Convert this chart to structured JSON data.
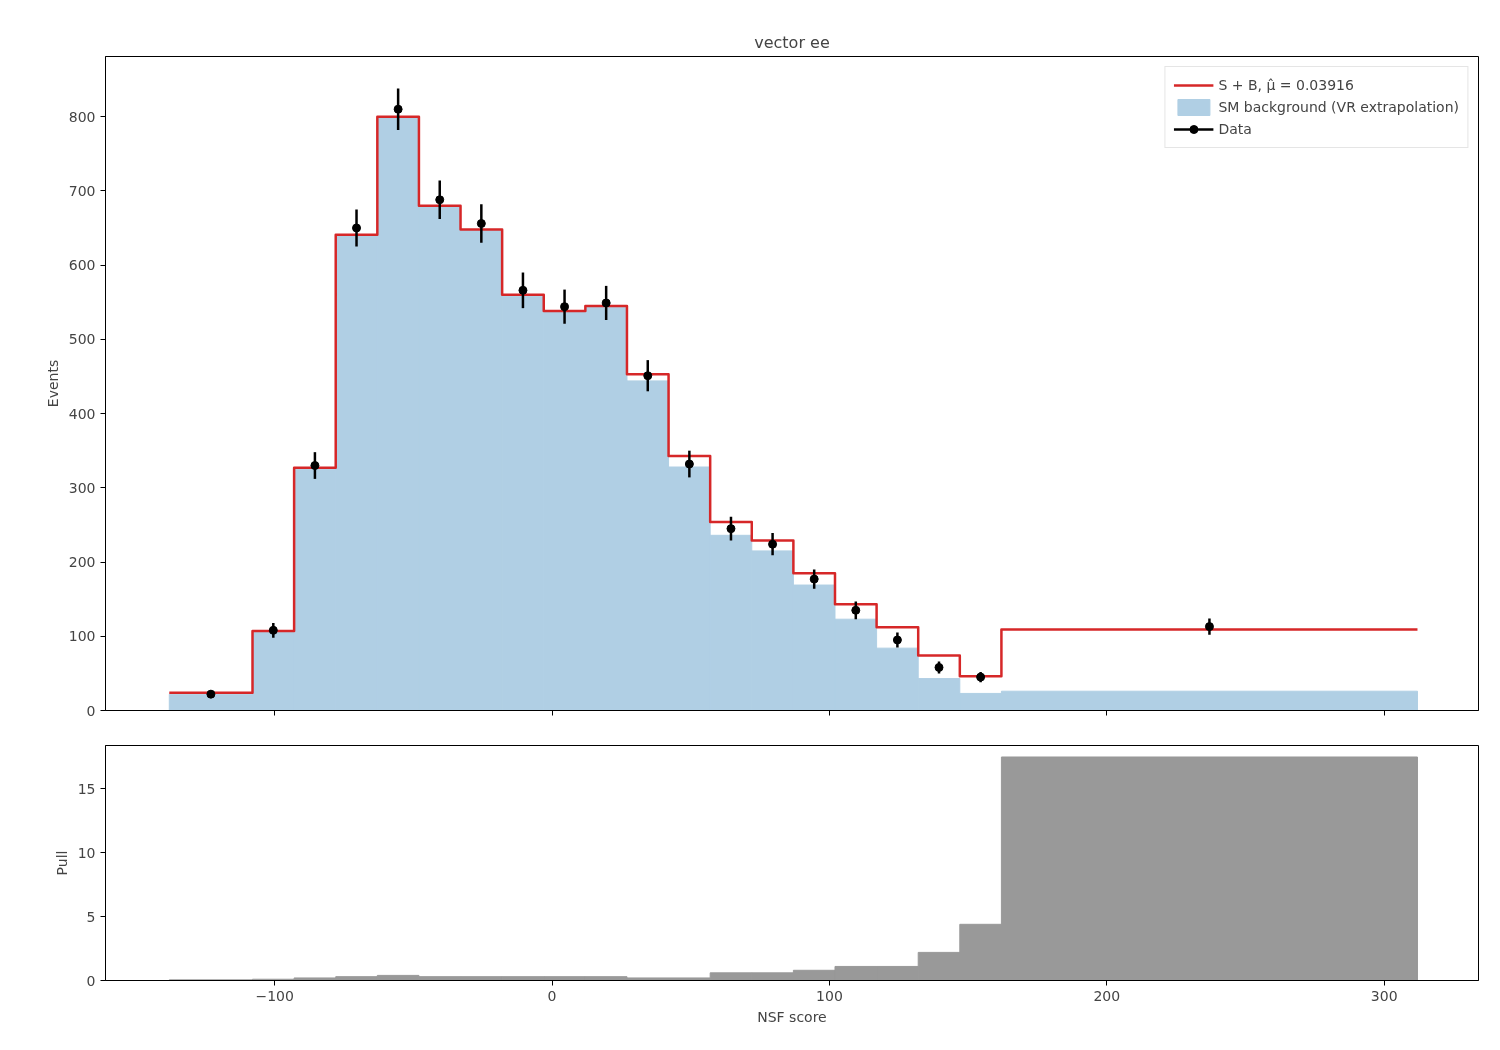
{
  "chart_data": [
    {
      "type": "histogram",
      "title": "vector ee",
      "ylabel": "Events",
      "legend": "top right",
      "tick_labels": "y",
      "bins": [
        -138,
        -108,
        -93,
        -78,
        -63,
        -48,
        -33,
        -18,
        -3,
        12,
        27,
        42,
        57,
        72,
        87,
        102,
        117,
        132,
        147,
        162,
        312
      ],
      "xlim": [
        -161,
        334
      ],
      "ylim": [
        0,
        881
      ],
      "xticks": [
        -100,
        0,
        100,
        200,
        300
      ],
      "yticks": [
        0,
        100,
        200,
        300,
        400,
        500,
        600,
        700,
        800
      ],
      "series": [
        {
          "name": "SM background (VR extrapolation)",
          "color": "#b0cfe4",
          "values": [
            22,
            105,
            325,
            640,
            798,
            679,
            647,
            558,
            537,
            543,
            444,
            328,
            236,
            215,
            169,
            123,
            84,
            43,
            23,
            26
          ]
        },
        {
          "type": "step",
          "name": "S + B, μ̂ = 0.03916",
          "color": "#d62728",
          "x": [
            -138,
            -108,
            -93,
            -78,
            -63,
            -48,
            -33,
            -18,
            -3,
            12,
            27,
            42,
            57,
            72,
            87,
            102,
            117,
            132,
            147,
            162,
            312
          ],
          "values": [
            24,
            107,
            327,
            641,
            800,
            680,
            648,
            560,
            538,
            545,
            453,
            343,
            254,
            229,
            185,
            143,
            112,
            74,
            46,
            109,
            109
          ]
        },
        {
          "type": "scatter",
          "name": "Data",
          "color": "#000000",
          "marker": "circle",
          "x": [
            -123,
            -100.5,
            -85.5,
            -70.5,
            -55.5,
            -40.5,
            -25.5,
            -10.5,
            4.5,
            19.5,
            34.5,
            49.5,
            64.5,
            79.5,
            94.5,
            109.5,
            124.5,
            139.5,
            154.5,
            237
          ],
          "values": [
            22,
            108,
            330,
            650,
            810,
            688,
            656,
            566,
            544,
            549,
            451,
            332,
            245,
            224,
            177,
            135,
            95,
            58,
            45,
            113
          ],
          "errors": [
            5,
            10,
            18,
            25,
            28,
            26,
            26,
            24,
            23,
            23,
            21,
            18,
            16,
            15,
            13,
            12,
            10,
            8,
            7,
            11
          ]
        }
      ]
    },
    {
      "type": "histogram",
      "xlabel": "NSF score",
      "ylabel": "Pull",
      "bins": [
        -138,
        -108,
        -93,
        -78,
        -63,
        -48,
        -33,
        -18,
        -3,
        12,
        27,
        42,
        57,
        72,
        87,
        102,
        117,
        132,
        147,
        162,
        312
      ],
      "xlim": [
        -161,
        334
      ],
      "ylim": [
        0,
        18.4
      ],
      "xticks": [
        {
          "value": -100,
          "label": "−100"
        },
        0,
        100,
        200,
        300
      ],
      "yticks": [
        0,
        5,
        10,
        15
      ],
      "series": [
        {
          "color": "#999999",
          "values": [
            0.05,
            0.1,
            0.2,
            0.3,
            0.4,
            0.3,
            0.3,
            0.3,
            0.3,
            0.3,
            0.2,
            0.2,
            0.6,
            0.6,
            0.8,
            1.1,
            1.1,
            2.2,
            4.4,
            17.5
          ]
        }
      ]
    }
  ]
}
